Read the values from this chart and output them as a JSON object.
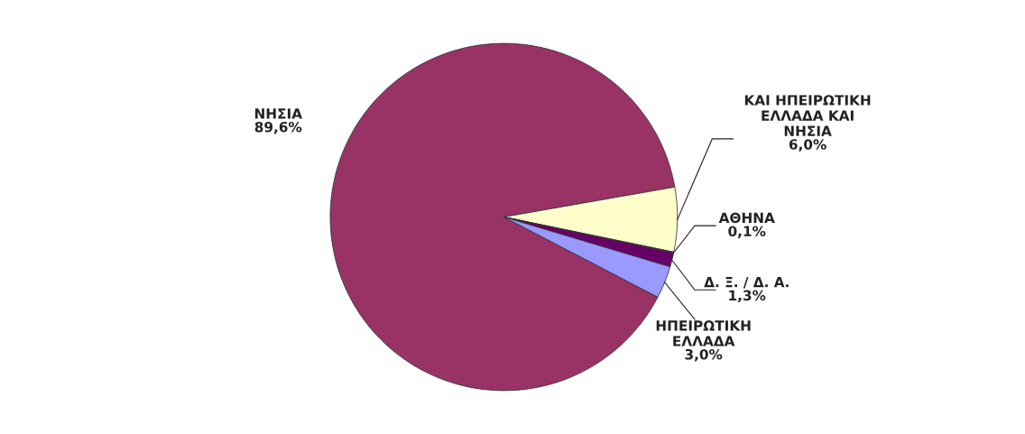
{
  "chart_data": {
    "type": "pie",
    "categories": [
      "ΝΗΣΙΑ",
      "ΚΑΙ ΗΠΕΙΡΩΤΙΚΗ\nΕΛΛΑΔΑ ΚΑΙ\nΝΗΣΙΑ",
      "ΑΘΗΝΑ",
      "Δ. Ξ. / Δ. Α.",
      "ΗΠΕΙΡΩΤΙΚΗ\nΕΛΛΑΔΑ"
    ],
    "values": [
      89.6,
      6.0,
      0.1,
      1.3,
      3.0
    ],
    "value_labels": [
      "89,6%",
      "6,0%",
      "0,1%",
      "1,3%",
      "3,0%"
    ],
    "colors": [
      "#993366",
      "#ffffcc",
      "#800080",
      "#660066",
      "#9999ff"
    ]
  }
}
